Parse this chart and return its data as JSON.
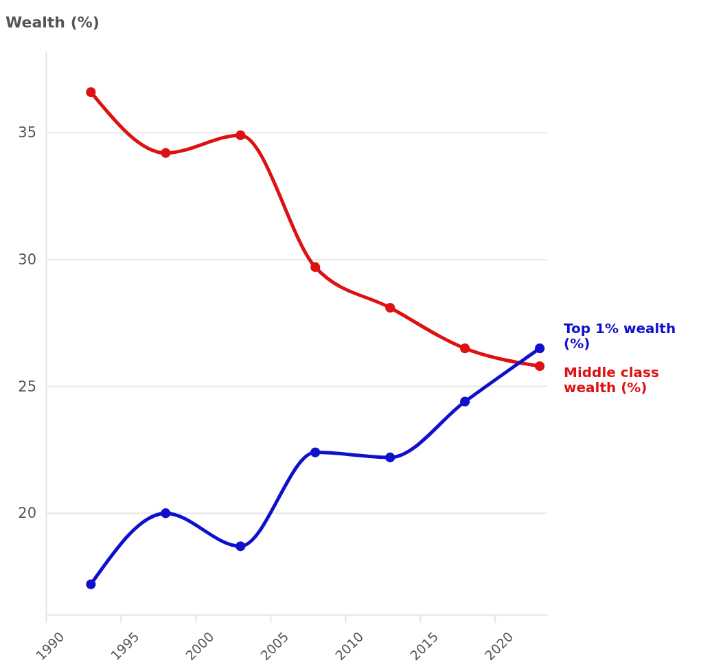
{
  "chart_data": {
    "type": "line",
    "ylabel": "Wealth (%)",
    "x": [
      1993,
      1998,
      2003,
      2008,
      2013,
      2018,
      2023
    ],
    "series": [
      {
        "name": "Middle class wealth (%)",
        "color": "#dd1111",
        "values": [
          36.6,
          34.2,
          34.9,
          29.7,
          28.1,
          26.5,
          25.8
        ]
      },
      {
        "name": "Top 1% wealth (%)",
        "color": "#1010cc",
        "values": [
          17.2,
          20.0,
          18.7,
          22.4,
          22.2,
          24.4,
          26.5
        ]
      }
    ],
    "xlim": [
      1990,
      2023.5
    ],
    "xticks": [
      1990,
      1995,
      2000,
      2005,
      2010,
      2015,
      2020
    ],
    "ylim": [
      16,
      38.2
    ],
    "yticks": [
      20,
      25,
      30,
      35
    ],
    "grid": "y",
    "marker": "circle",
    "line_style": "solid"
  }
}
